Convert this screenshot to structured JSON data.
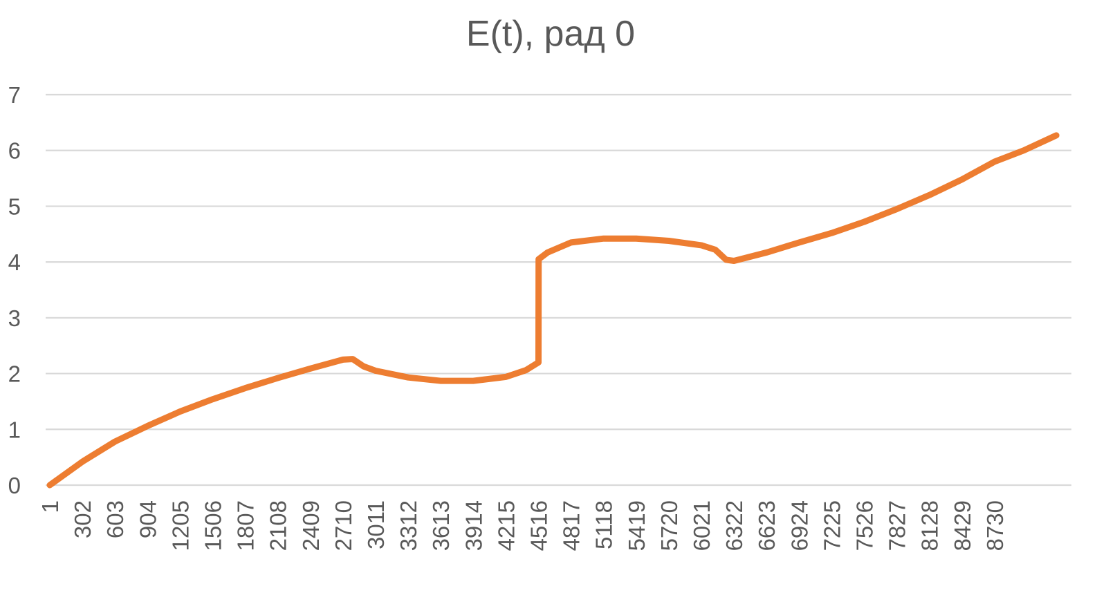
{
  "chart_data": {
    "type": "line",
    "title": "E(t), рад 0",
    "xlabel": "",
    "ylabel": "",
    "ylim": [
      0,
      7
    ],
    "yticks": [
      0,
      1,
      2,
      3,
      4,
      5,
      6,
      7
    ],
    "xlim": [
      1,
      9300
    ],
    "x_tick_labels": [
      "1",
      "302",
      "603",
      "904",
      "1205",
      "1506",
      "1807",
      "2108",
      "2409",
      "2710",
      "3011",
      "3312",
      "3613",
      "3914",
      "4215",
      "4516",
      "4817",
      "5118",
      "5419",
      "5720",
      "6021",
      "6322",
      "6623",
      "6924",
      "7225",
      "7526",
      "7827",
      "8128",
      "8429",
      "8730"
    ],
    "grid": true,
    "legend": "none",
    "colors": {
      "series": "#ed7d31",
      "grid": "#d9d9d9",
      "text": "#595959"
    },
    "series": [
      {
        "x": [
          1,
          302,
          603,
          904,
          1205,
          1506,
          1807,
          2108,
          2409,
          2710,
          2800,
          2900,
          3011,
          3312,
          3613,
          3914,
          4215,
          4400,
          4516,
          4517,
          4600,
          4817,
          5118,
          5419,
          5720,
          6021,
          6150,
          6250,
          6322,
          6623,
          6924,
          7225,
          7526,
          7827,
          8128,
          8429,
          8730,
          9000,
          9300
        ],
        "values": [
          0.0,
          0.42,
          0.78,
          1.06,
          1.32,
          1.54,
          1.74,
          1.92,
          2.09,
          2.25,
          2.26,
          2.13,
          2.05,
          1.93,
          1.87,
          1.87,
          1.94,
          2.06,
          2.2,
          4.05,
          4.17,
          4.35,
          4.42,
          4.42,
          4.38,
          4.3,
          4.22,
          4.04,
          4.02,
          4.17,
          4.35,
          4.52,
          4.72,
          4.95,
          5.2,
          5.48,
          5.8,
          6.0,
          6.27
        ]
      }
    ]
  }
}
